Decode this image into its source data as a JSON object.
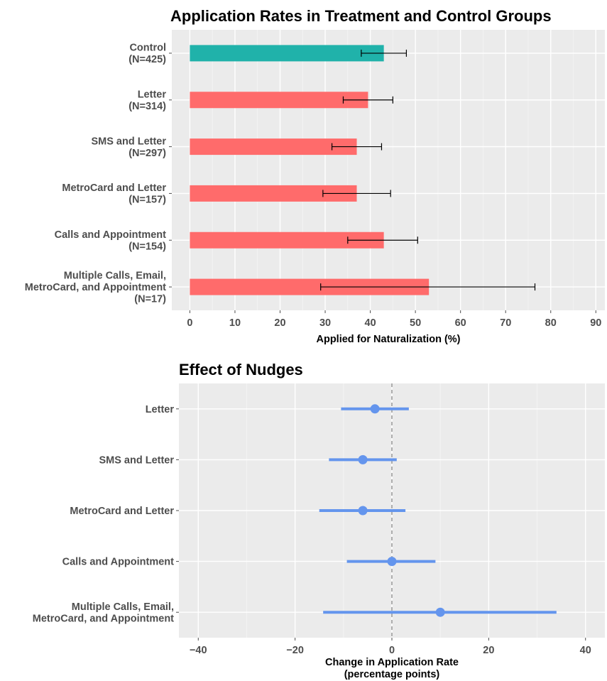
{
  "colors": {
    "panel": "#ebebeb",
    "grid_major": "#ffffff",
    "grid_minor": "#f5f5f5",
    "control": "#20b2aa",
    "treatment": "#ff6b6b",
    "effect": "#6495ed",
    "tick": "#4d4d4d"
  },
  "chart_data": [
    {
      "type": "bar",
      "orientation": "horizontal",
      "title": "Application Rates in Treatment and Control Groups",
      "xlabel": "Applied for Naturalization (%)",
      "xlim": [
        -4,
        92
      ],
      "xticks": [
        0,
        10,
        20,
        30,
        40,
        50,
        60,
        70,
        80,
        90
      ],
      "grid": true,
      "legend": "none",
      "categories": [
        {
          "label": [
            "Control",
            "(N=425)"
          ],
          "value": 43,
          "ci": [
            38,
            48
          ],
          "group": "control"
        },
        {
          "label": [
            "Letter",
            "(N=314)"
          ],
          "value": 39.5,
          "ci": [
            34,
            45
          ],
          "group": "treatment"
        },
        {
          "label": [
            "SMS and Letter",
            "(N=297)"
          ],
          "value": 37,
          "ci": [
            31.5,
            42.5
          ],
          "group": "treatment"
        },
        {
          "label": [
            "MetroCard and Letter",
            "(N=157)"
          ],
          "value": 37,
          "ci": [
            29.5,
            44.5
          ],
          "group": "treatment"
        },
        {
          "label": [
            "Calls and Appointment",
            "(N=154)"
          ],
          "value": 43,
          "ci": [
            35,
            50.5
          ],
          "group": "treatment"
        },
        {
          "label": [
            "Multiple Calls, Email,",
            "MetroCard, and Appointment",
            "(N=17)"
          ],
          "value": 53,
          "ci": [
            29,
            76.5
          ],
          "group": "treatment"
        }
      ]
    },
    {
      "type": "scatter",
      "subtype": "point-range",
      "orientation": "horizontal",
      "title": "Effect of Nudges",
      "xlabel": [
        "Change in Application Rate",
        "(percentage points)"
      ],
      "xlim": [
        -44,
        44
      ],
      "xticks": [
        -40,
        -20,
        0,
        20,
        40
      ],
      "xtick_labels": [
        "−40",
        "−20",
        "0",
        "20",
        "40"
      ],
      "reference_line": 0,
      "grid": true,
      "legend": "none",
      "points": [
        {
          "label": [
            "Letter"
          ],
          "estimate": -3.5,
          "ci": [
            -10.5,
            3.5
          ]
        },
        {
          "label": [
            "SMS and Letter"
          ],
          "estimate": -6,
          "ci": [
            -13,
            1
          ]
        },
        {
          "label": [
            "MetroCard and Letter"
          ],
          "estimate": -6,
          "ci": [
            -15,
            2.8
          ]
        },
        {
          "label": [
            "Calls and Appointment"
          ],
          "estimate": 0,
          "ci": [
            -9.3,
            9
          ]
        },
        {
          "label": [
            "Multiple Calls, Email,",
            "MetroCard, and Appointment"
          ],
          "estimate": 10,
          "ci": [
            -14.2,
            34
          ]
        }
      ]
    }
  ]
}
